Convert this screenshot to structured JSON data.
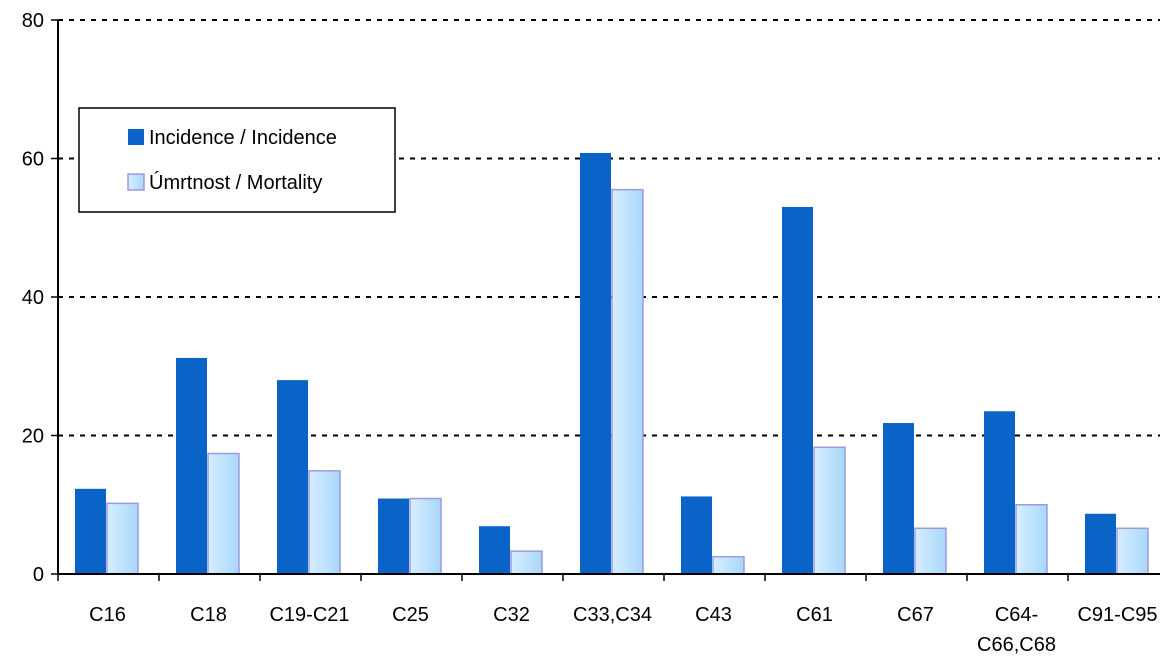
{
  "chart_data": {
    "type": "bar",
    "title": "",
    "xlabel": "",
    "ylabel": "",
    "ylim": [
      0,
      80
    ],
    "yticks": [
      0,
      20,
      40,
      60,
      80
    ],
    "grid": "horizontal dashed",
    "legend_position": "top-left",
    "categories": [
      [
        "C16"
      ],
      [
        "C18"
      ],
      [
        "C19-C21"
      ],
      [
        "C25"
      ],
      [
        "C32"
      ],
      [
        "C33,C34"
      ],
      [
        "C43"
      ],
      [
        "C61"
      ],
      [
        "C67"
      ],
      [
        "C64-",
        "C66,C68"
      ],
      [
        "C91-C95"
      ]
    ],
    "series": [
      {
        "name": "Incidence / Incidence",
        "color": "#0A64C8",
        "values": [
          12.3,
          31.2,
          28.0,
          10.9,
          6.9,
          60.8,
          11.2,
          53.0,
          21.8,
          23.5,
          8.7
        ]
      },
      {
        "name": "Úmrtnost / Mortality",
        "color": "#BFE3FD",
        "stroke": "#9B9BE0",
        "values": [
          10.2,
          17.4,
          14.9,
          10.9,
          3.3,
          55.5,
          2.5,
          18.3,
          6.6,
          10.0,
          6.6
        ]
      }
    ]
  }
}
